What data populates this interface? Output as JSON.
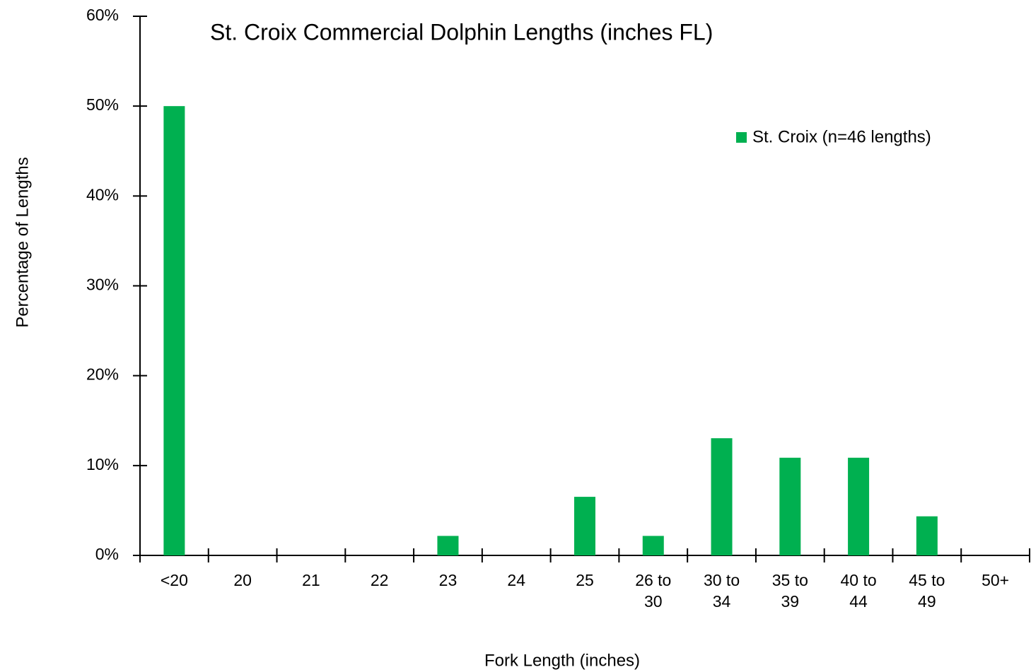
{
  "chart_data": {
    "type": "bar",
    "title": "St. Croix Commercial Dolphin Lengths (inches FL)",
    "x_label": "Fork Length (inches)",
    "y_label": "Percentage of Lengths",
    "categories": [
      "<20",
      "20",
      "21",
      "22",
      "23",
      "24",
      "25",
      "26 to 30",
      "30 to 34",
      "35 to 39",
      "40 to 44",
      "45 to 49",
      "50+"
    ],
    "series": [
      {
        "name": "St. Croix (n=46 lengths)",
        "color": "#00b050",
        "values": [
          50,
          0,
          0,
          0,
          2.17,
          0,
          6.52,
          2.17,
          13.04,
          10.87,
          10.87,
          4.35,
          0
        ]
      }
    ],
    "ylim": [
      0,
      60
    ],
    "yticks": [
      {
        "value": 0,
        "label": "0%"
      },
      {
        "value": 10,
        "label": "10%"
      },
      {
        "value": 20,
        "label": "20%"
      },
      {
        "value": 30,
        "label": "30%"
      },
      {
        "value": 40,
        "label": "40%"
      },
      {
        "value": 50,
        "label": "50%"
      },
      {
        "value": 60,
        "label": "60%"
      }
    ],
    "legend": "upper right",
    "grid": false
  }
}
